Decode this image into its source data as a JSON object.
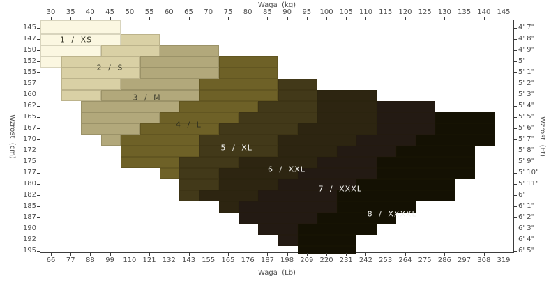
{
  "chart_data": {
    "type": "area",
    "title": "",
    "description": "Stepped size chart mapping body height vs weight to clothing sizes 1/XS through 8/XXXXL",
    "grid": false,
    "x_axis": {
      "label_top": "Waga  (kg)",
      "label_bottom": "Waga  (Lb)",
      "ticks_kg": [
        30,
        35,
        40,
        45,
        50,
        55,
        60,
        65,
        70,
        75,
        80,
        85,
        90,
        95,
        100,
        105,
        110,
        115,
        120,
        125,
        130,
        135,
        140,
        145
      ],
      "ticks_lb": [
        66,
        77,
        88,
        99,
        110,
        121,
        132,
        143,
        155,
        165,
        176,
        187,
        198,
        209,
        220,
        231,
        242,
        253,
        264,
        275,
        286,
        297,
        308,
        319
      ],
      "range_kg": [
        27.5,
        147.5
      ]
    },
    "y_axis": {
      "label_left": "Wzrost  (cm)",
      "label_right": "Wzrost  (Ft)",
      "ticks_cm": [
        145,
        147,
        150,
        152,
        155,
        157,
        160,
        162,
        165,
        167,
        170,
        172,
        175,
        177,
        180,
        182,
        185,
        187,
        190,
        192,
        195
      ],
      "ticks_ft": [
        "4' 7\"",
        "4' 8\"",
        "4' 9\"",
        "5'",
        "5' 1\"",
        "5' 2\"",
        "5' 3\"",
        "5' 4\"",
        "5' 5\"",
        "5' 6\"",
        "5' 7\"",
        "5' 8\"",
        "5' 9\"",
        "5' 10\"",
        "5' 11\"",
        "6'",
        "6' 1\"",
        "6' 2\"",
        "6' 3\"",
        "6' 4\"",
        "6' 5\""
      ],
      "range_cm": [
        143.75,
        196.25
      ]
    },
    "sizes": [
      {
        "id": 1,
        "label": "1 / XS",
        "color": "#FBF7E1",
        "text_color": "#3d3d2e",
        "anchor": {
          "kg": 36.2,
          "cm": 147.0
        }
      },
      {
        "id": 2,
        "label": "2 / S",
        "color": "#D9D0A5",
        "text_color": "#3d3d2e",
        "anchor": {
          "kg": 44.8,
          "cm": 153.5
        }
      },
      {
        "id": 3,
        "label": "3 / M",
        "color": "#B2A87B",
        "text_color": "#3d3d2e",
        "anchor": {
          "kg": 54.2,
          "cm": 160.4
        }
      },
      {
        "id": 4,
        "label": "4 / L",
        "color": "#6E6127",
        "text_color": "#2e2e1e",
        "anchor": {
          "kg": 64.8,
          "cm": 166.3
        }
      },
      {
        "id": 5,
        "label": "5 / XL",
        "color": "#423919",
        "text_color": "#f2f2ef",
        "anchor": {
          "kg": 77.0,
          "cm": 171.4
        }
      },
      {
        "id": 6,
        "label": "6 / XXL",
        "color": "#2D2511",
        "text_color": "#f2f2ef",
        "anchor": {
          "kg": 89.7,
          "cm": 176.3
        }
      },
      {
        "id": 7,
        "label": "7 / XXXL",
        "color": "#231A13",
        "text_color": "#f2f2ef",
        "anchor": {
          "kg": 103.3,
          "cm": 180.8
        }
      },
      {
        "id": 8,
        "label": "8 / XXXXL",
        "color": "#141103",
        "text_color": "#f2f2ef",
        "anchor": {
          "kg": 116.5,
          "cm": 186.3
        }
      }
    ],
    "rows": [
      {
        "cm": 145,
        "bands": [
          [
            1,
            30,
            45
          ]
        ]
      },
      {
        "cm": 147,
        "bands": [
          [
            1,
            30,
            45
          ],
          [
            2,
            50,
            55
          ]
        ]
      },
      {
        "cm": 150,
        "bands": [
          [
            1,
            30,
            40
          ],
          [
            2,
            45,
            55
          ],
          [
            3,
            60,
            70
          ]
        ]
      },
      {
        "cm": 152,
        "bands": [
          [
            1,
            30,
            30
          ],
          [
            2,
            35,
            50
          ],
          [
            3,
            55,
            70
          ],
          [
            4,
            75,
            85
          ]
        ]
      },
      {
        "cm": 155,
        "bands": [
          [
            2,
            35,
            50
          ],
          [
            3,
            55,
            70
          ],
          [
            4,
            75,
            85
          ]
        ]
      },
      {
        "cm": 157,
        "bands": [
          [
            2,
            35,
            45
          ],
          [
            3,
            50,
            65
          ],
          [
            4,
            70,
            85
          ],
          [
            5,
            90,
            95
          ]
        ]
      },
      {
        "cm": 160,
        "bands": [
          [
            2,
            35,
            40
          ],
          [
            3,
            45,
            65
          ],
          [
            4,
            70,
            85
          ],
          [
            5,
            90,
            95
          ],
          [
            6,
            100,
            110
          ]
        ]
      },
      {
        "cm": 162,
        "bands": [
          [
            3,
            40,
            60
          ],
          [
            4,
            65,
            80
          ],
          [
            5,
            85,
            95
          ],
          [
            6,
            100,
            110
          ],
          [
            7,
            115,
            125
          ]
        ]
      },
      {
        "cm": 165,
        "bands": [
          [
            3,
            40,
            55
          ],
          [
            4,
            60,
            75
          ],
          [
            5,
            80,
            95
          ],
          [
            6,
            100,
            110
          ],
          [
            7,
            115,
            125
          ],
          [
            8,
            130,
            140
          ]
        ]
      },
      {
        "cm": 167,
        "bands": [
          [
            3,
            40,
            50
          ],
          [
            4,
            55,
            70
          ],
          [
            5,
            75,
            90
          ],
          [
            6,
            95,
            110
          ],
          [
            7,
            115,
            125
          ],
          [
            8,
            130,
            140
          ]
        ]
      },
      {
        "cm": 170,
        "bands": [
          [
            3,
            45,
            45
          ],
          [
            4,
            50,
            65
          ],
          [
            5,
            70,
            85
          ],
          [
            6,
            90,
            105
          ],
          [
            7,
            110,
            120
          ],
          [
            8,
            125,
            140
          ]
        ]
      },
      {
        "cm": 172,
        "bands": [
          [
            4,
            50,
            65
          ],
          [
            5,
            70,
            85
          ],
          [
            6,
            90,
            100
          ],
          [
            7,
            105,
            115
          ],
          [
            8,
            120,
            135
          ]
        ]
      },
      {
        "cm": 175,
        "bands": [
          [
            4,
            50,
            60
          ],
          [
            5,
            65,
            75
          ],
          [
            6,
            80,
            95
          ],
          [
            7,
            100,
            110
          ],
          [
            8,
            115,
            135
          ]
        ]
      },
      {
        "cm": 177,
        "bands": [
          [
            4,
            60,
            60
          ],
          [
            5,
            65,
            70
          ],
          [
            6,
            75,
            90
          ],
          [
            7,
            95,
            110
          ],
          [
            8,
            115,
            135
          ]
        ]
      },
      {
        "cm": 180,
        "bands": [
          [
            5,
            65,
            70
          ],
          [
            6,
            75,
            85
          ],
          [
            7,
            90,
            105
          ],
          [
            8,
            110,
            130
          ]
        ]
      },
      {
        "cm": 182,
        "bands": [
          [
            5,
            65,
            65
          ],
          [
            6,
            70,
            80
          ],
          [
            7,
            85,
            100
          ],
          [
            8,
            105,
            130
          ]
        ]
      },
      {
        "cm": 185,
        "bands": [
          [
            6,
            75,
            75
          ],
          [
            7,
            80,
            100
          ],
          [
            8,
            105,
            120
          ]
        ]
      },
      {
        "cm": 187,
        "bands": [
          [
            7,
            80,
            95
          ],
          [
            8,
            100,
            115
          ]
        ]
      },
      {
        "cm": 190,
        "bands": [
          [
            7,
            85,
            90
          ],
          [
            8,
            95,
            110
          ]
        ]
      },
      {
        "cm": 192,
        "bands": [
          [
            7,
            90,
            90
          ],
          [
            8,
            95,
            105
          ]
        ]
      },
      {
        "cm": 195,
        "bands": [
          [
            8,
            95,
            105
          ]
        ]
      }
    ]
  }
}
